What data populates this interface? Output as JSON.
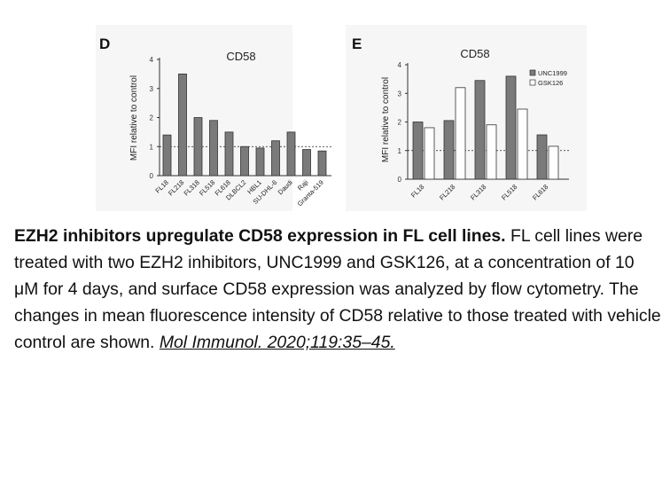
{
  "chart_data": [
    {
      "type": "bar",
      "panel_label": "D",
      "title": "CD58",
      "ylabel": "MFI relative to control",
      "ylim": [
        0,
        4
      ],
      "yticks": [
        "0",
        "1",
        "2",
        "3",
        "4"
      ],
      "reference_line": 1,
      "categories": [
        "FL18",
        "FL218",
        "FL318",
        "FL518",
        "FL618",
        "DLBCL2",
        "HBL1",
        "SU-DHL-6",
        "Daudi",
        "Raji",
        "Granta-519"
      ],
      "values": [
        1.4,
        3.5,
        2.0,
        1.9,
        1.5,
        1.0,
        0.95,
        1.2,
        1.5,
        0.9,
        0.85
      ],
      "bar_color": "#7a7a7a"
    },
    {
      "type": "bar",
      "panel_label": "E",
      "title": "CD58",
      "ylabel": "MFI relative to control",
      "ylim": [
        0,
        4
      ],
      "yticks": [
        "0",
        "1",
        "2",
        "3",
        "4"
      ],
      "reference_line": 1,
      "categories": [
        "FL18",
        "FL218",
        "FL318",
        "FL518",
        "FL618"
      ],
      "legend_position": "top-right",
      "series": [
        {
          "name": "UNC1999",
          "values": [
            2.0,
            2.05,
            3.45,
            3.6,
            1.55
          ],
          "color": "#7a7a7a"
        },
        {
          "name": "GSK126",
          "values": [
            1.8,
            3.2,
            1.9,
            2.45,
            1.15
          ],
          "color": "#ffffff"
        }
      ]
    }
  ],
  "caption": {
    "title": "EZH2 inhibitors upregulate CD58 expression in FL cell lines.",
    "body": "FL cell lines were treated with two EZH2 inhibitors, UNC1999 and GSK126, at a concentration of 10 μM for 4 days, and surface CD58 expression was analyzed by flow cytometry. The changes in mean fluorescence intensity of CD58 relative to those treated with vehicle control are shown.",
    "citation": "Mol Immunol. 2020;119:35–45."
  }
}
